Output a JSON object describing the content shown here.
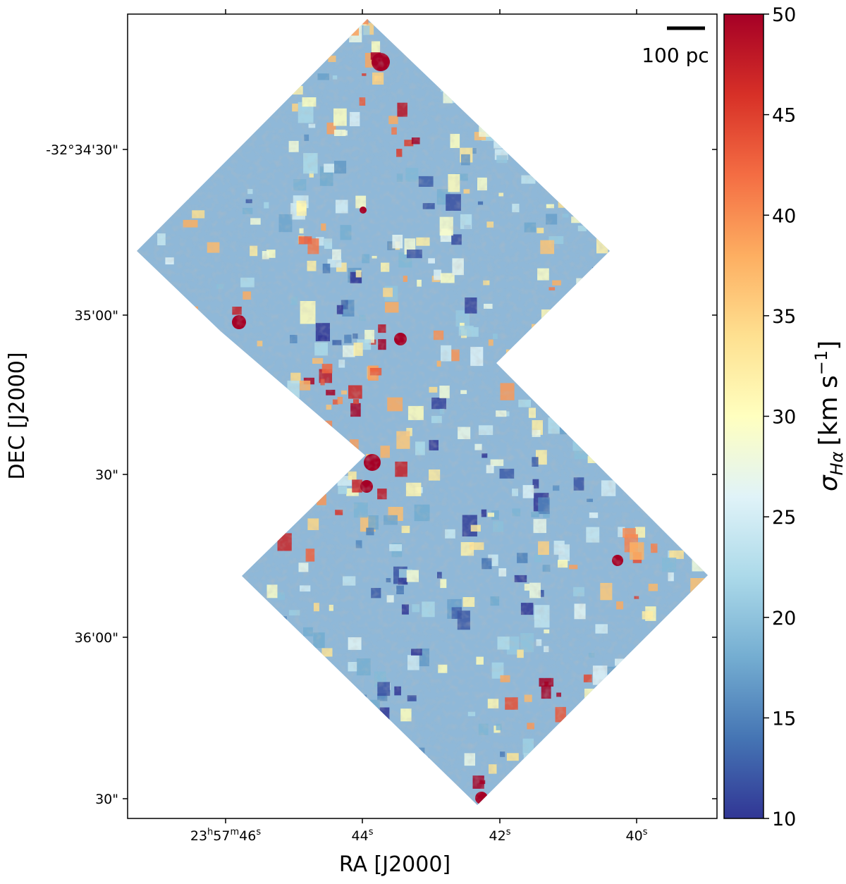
{
  "chart_data": {
    "type": "heatmap",
    "title": "",
    "xlabel": "RA [J2000]",
    "ylabel": "DEC [J2000]",
    "x_ticks": [
      {
        "main": "23",
        "sup1": "h",
        "mid": "57",
        "sup2": "m",
        "end": "46",
        "sup3": "s"
      },
      {
        "main": "44",
        "sup1": "s"
      },
      {
        "main": "42",
        "sup1": "s"
      },
      {
        "main": "40",
        "sup1": "s"
      }
    ],
    "y_ticks": [
      "-32°34'30\"",
      "35'00\"",
      "30\"",
      "36'00\"",
      "30\""
    ],
    "colorbar": {
      "label_symbol": "σ",
      "label_sub": "Hα",
      "label_unit": "[km s",
      "label_exp": "−1",
      "label_close": "]",
      "min": 10,
      "max": 50,
      "ticks": [
        "10",
        "15",
        "20",
        "25",
        "30",
        "35",
        "40",
        "45",
        "50"
      ],
      "colormap": "RdYlBu_r"
    },
    "scale_bar": "100 pc",
    "field_shape": "two overlapping square mosaic pointings rotated 45°",
    "features": [
      {
        "region": "top pointing, upper tip",
        "sigma": 48
      },
      {
        "region": "top pointing, left-center compact knot",
        "sigma": 50
      },
      {
        "region": "center, small knots near DEC 35'10\"",
        "sigma": 47
      },
      {
        "region": "bottom pointing, knots near DEC 35'30\"",
        "sigma": 50
      },
      {
        "region": "bottom pointing, lower tip",
        "sigma": 48
      },
      {
        "region": "bottom pointing, right edge clumps",
        "sigma": 44
      },
      {
        "region": "interior dark-blue low-dispersion zones",
        "sigma": 10
      }
    ]
  }
}
